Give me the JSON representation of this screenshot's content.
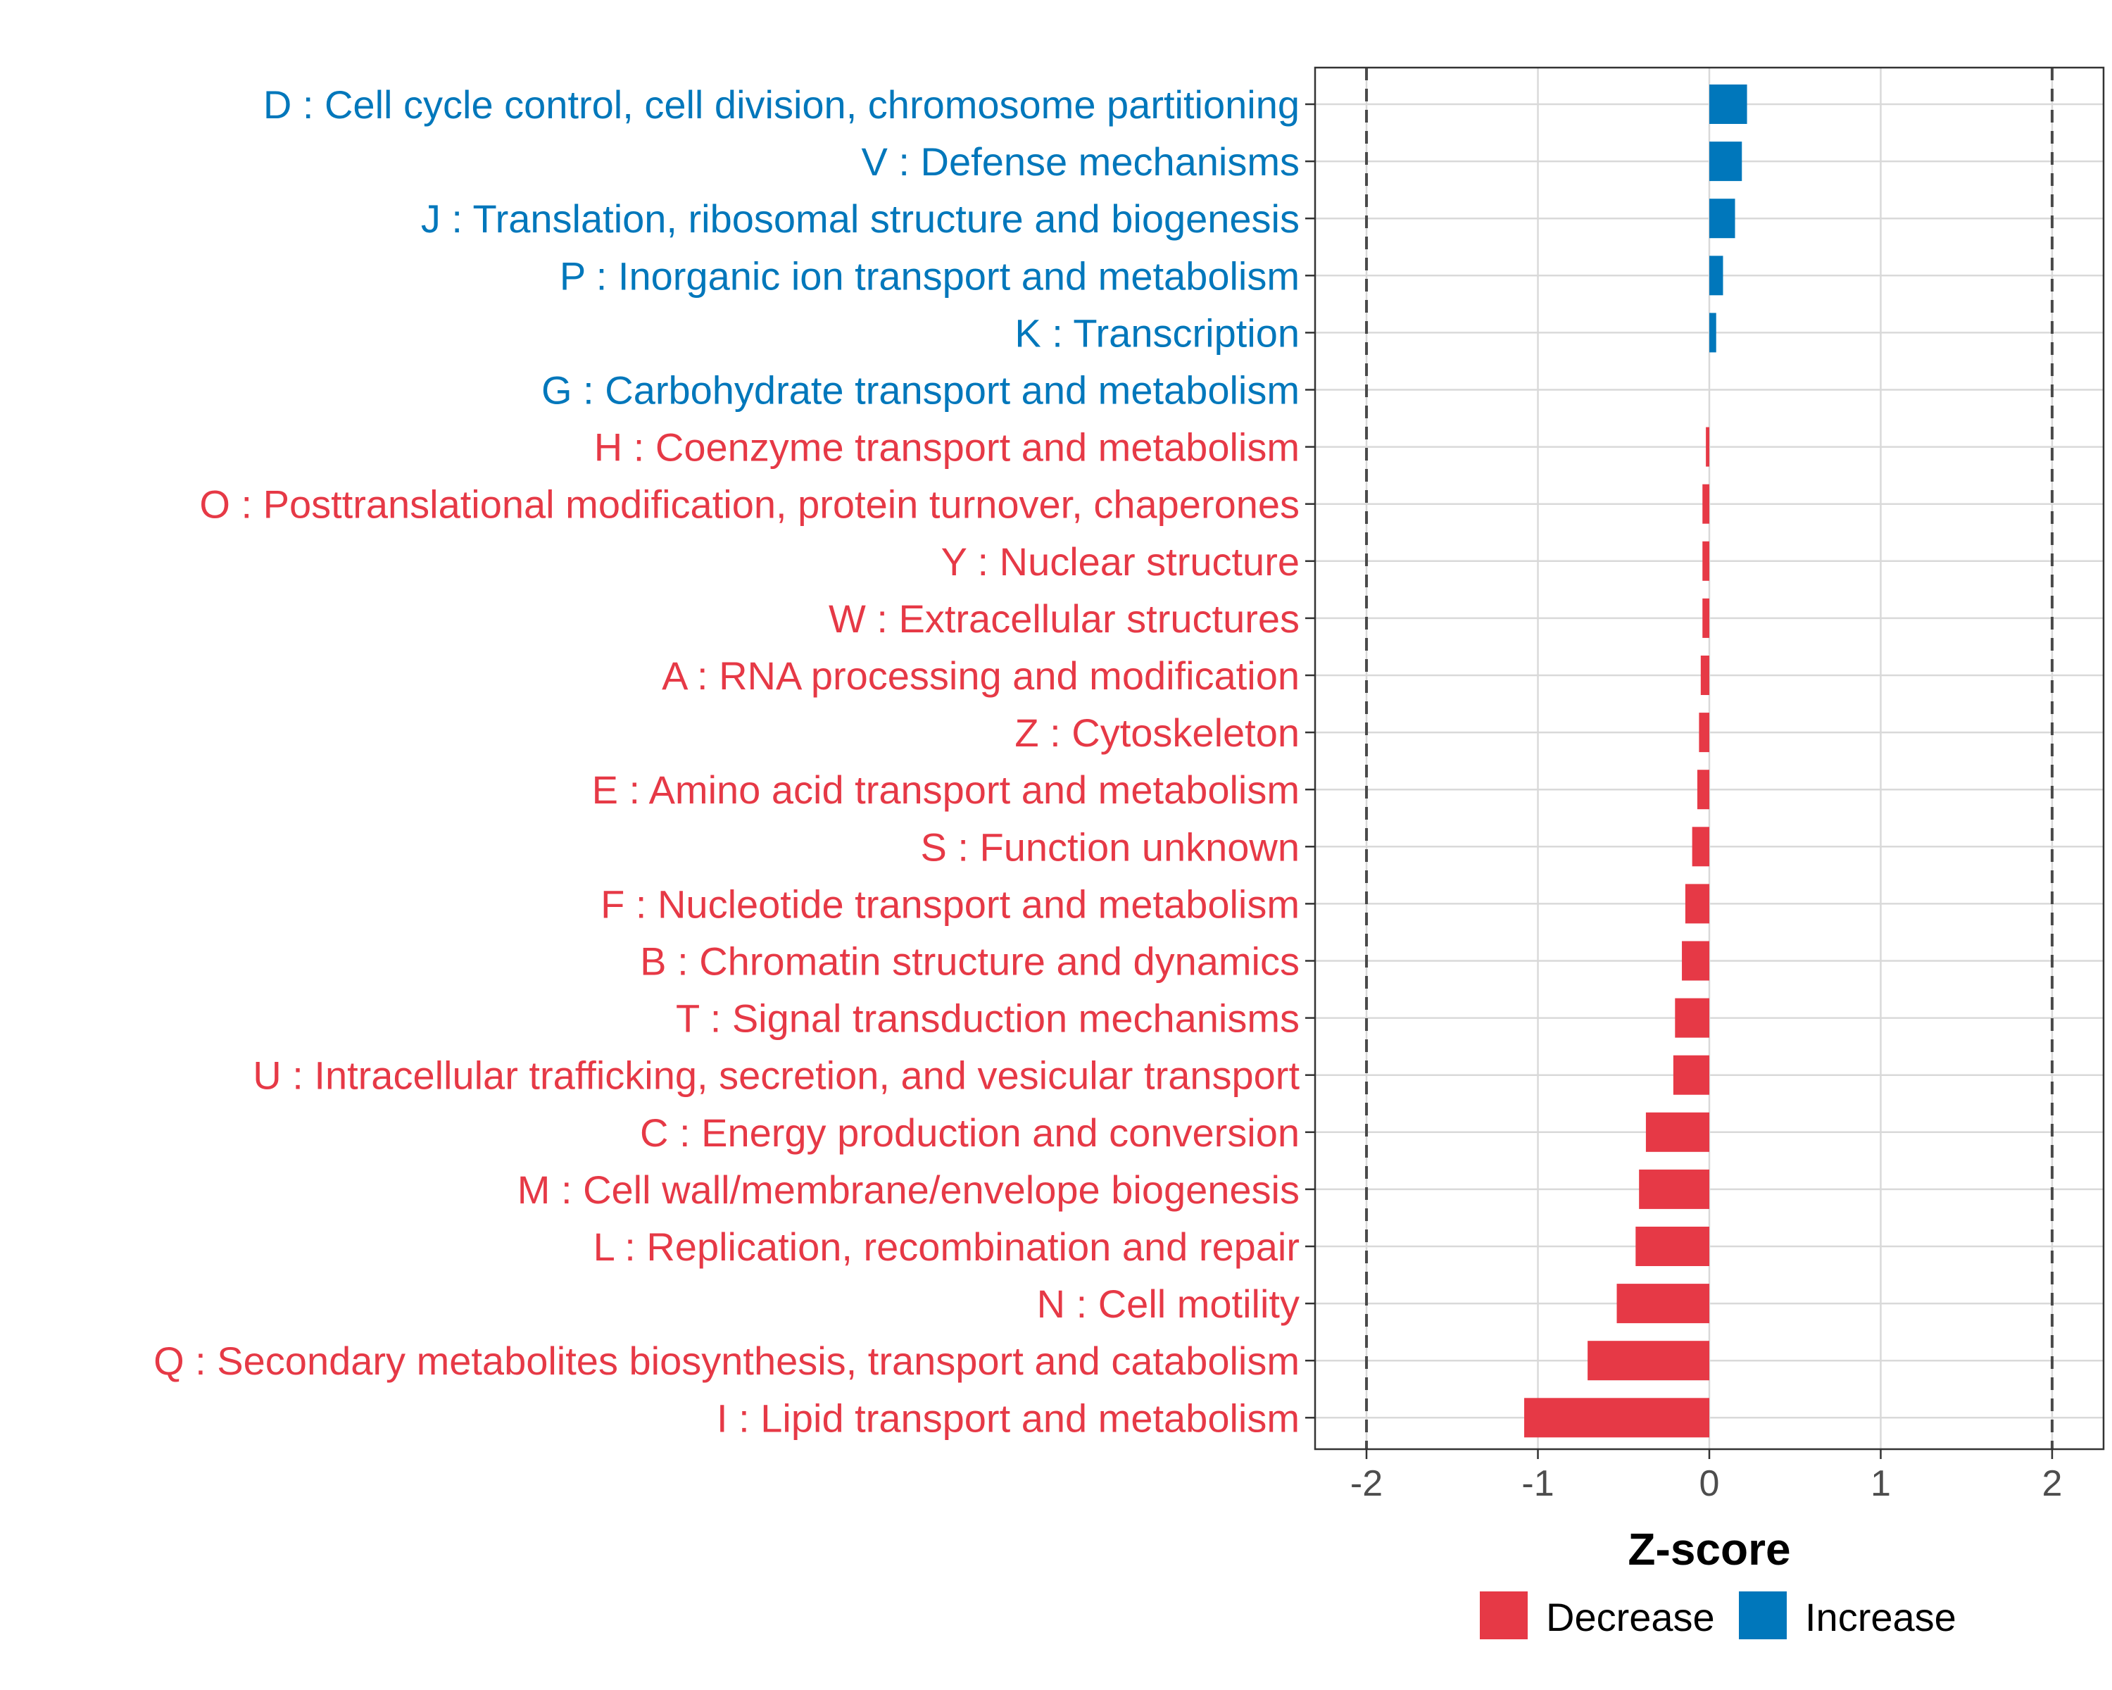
{
  "chart_data": {
    "type": "bar",
    "orientation": "horizontal",
    "title": "",
    "xlabel": "Z-score",
    "ylabel": "",
    "xlim": [
      -2.3,
      2.3
    ],
    "xticks": [
      -2,
      -1,
      0,
      1,
      2
    ],
    "xtick_labels": [
      "-2",
      "-1",
      "0",
      "1",
      "2"
    ],
    "reference_lines": [
      -2,
      2
    ],
    "grid": true,
    "legend_position": "bottom",
    "colors": {
      "Decrease": "#E63946",
      "Increase": "#0077BB"
    },
    "categories": [
      "D : Cell cycle control, cell division, chromosome partitioning",
      "V : Defense mechanisms",
      "J : Translation, ribosomal structure and biogenesis",
      "P : Inorganic ion transport and metabolism",
      "K : Transcription",
      "G : Carbohydrate transport and metabolism",
      "H : Coenzyme transport and metabolism",
      "O : Posttranslational modification, protein turnover, chaperones",
      "Y : Nuclear structure",
      "W : Extracellular structures",
      "A : RNA processing and modification",
      "Z : Cytoskeleton",
      "E : Amino acid transport and metabolism",
      "S : Function unknown",
      "F : Nucleotide transport and metabolism",
      "B : Chromatin structure and dynamics",
      "T : Signal transduction mechanisms",
      "U : Intracellular trafficking, secretion, and vesicular transport",
      "C : Energy production and conversion",
      "M : Cell wall/membrane/envelope biogenesis",
      "L : Replication, recombination and repair",
      "N : Cell motility",
      "Q : Secondary metabolites biosynthesis, transport and catabolism",
      "I : Lipid transport and metabolism"
    ],
    "values": [
      0.22,
      0.19,
      0.15,
      0.08,
      0.04,
      0.0,
      -0.02,
      -0.04,
      -0.04,
      -0.04,
      -0.05,
      -0.06,
      -0.07,
      -0.1,
      -0.14,
      -0.16,
      -0.2,
      -0.21,
      -0.37,
      -0.41,
      -0.43,
      -0.54,
      -0.71,
      -1.08
    ],
    "groups": [
      "Increase",
      "Increase",
      "Increase",
      "Increase",
      "Increase",
      "Increase",
      "Decrease",
      "Decrease",
      "Decrease",
      "Decrease",
      "Decrease",
      "Decrease",
      "Decrease",
      "Decrease",
      "Decrease",
      "Decrease",
      "Decrease",
      "Decrease",
      "Decrease",
      "Decrease",
      "Decrease",
      "Decrease",
      "Decrease",
      "Decrease"
    ],
    "legend": [
      {
        "name": "Decrease",
        "color": "#E63946"
      },
      {
        "name": "Increase",
        "color": "#0077BB"
      }
    ]
  }
}
